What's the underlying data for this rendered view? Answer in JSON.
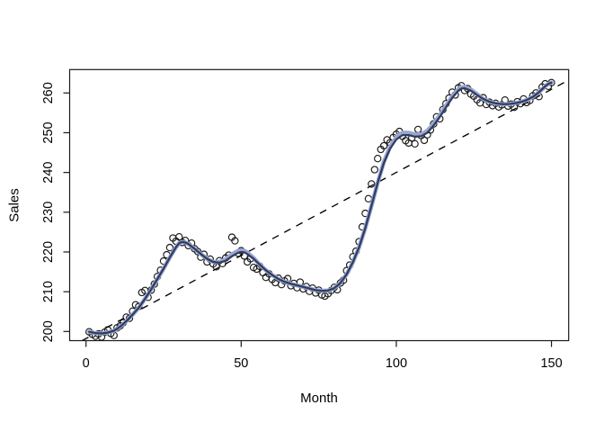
{
  "chart_data": {
    "type": "scatter",
    "title": "",
    "xlabel": "Month",
    "ylabel": "Sales",
    "x_ticks": [
      0,
      50,
      100,
      150
    ],
    "y_ticks": [
      200,
      210,
      220,
      230,
      240,
      250,
      260
    ],
    "xlim": [
      -5,
      156
    ],
    "ylim": [
      197.7,
      265.9
    ],
    "grid": "off",
    "legend": "none",
    "colors": {
      "point": "#1a1a1a",
      "smooth_dark": "#2e3b63",
      "smooth_light": "#9aa6cb",
      "trend": "#000000",
      "axis": "#1a1a1a",
      "background": "#ffffff"
    },
    "points": {
      "marker": "open-circle",
      "x": [
        1,
        2,
        3,
        4,
        5,
        6,
        7,
        8,
        9,
        10,
        11,
        12,
        13,
        14,
        15,
        16,
        17,
        18,
        19,
        20,
        21,
        22,
        23,
        24,
        25,
        26,
        27,
        28,
        29,
        30,
        31,
        32,
        33,
        34,
        35,
        36,
        37,
        38,
        39,
        40,
        41,
        42,
        43,
        44,
        45,
        46,
        47,
        48,
        49,
        50,
        51,
        52,
        53,
        54,
        55,
        56,
        57,
        58,
        59,
        60,
        61,
        62,
        63,
        64,
        65,
        66,
        67,
        68,
        69,
        70,
        71,
        72,
        73,
        74,
        75,
        76,
        77,
        78,
        79,
        80,
        81,
        82,
        83,
        84,
        85,
        86,
        87,
        88,
        89,
        90,
        91,
        92,
        93,
        94,
        95,
        96,
        97,
        98,
        99,
        100,
        101,
        102,
        103,
        104,
        105,
        106,
        107,
        108,
        109,
        110,
        111,
        112,
        113,
        114,
        115,
        116,
        117,
        118,
        119,
        120,
        121,
        122,
        123,
        124,
        125,
        126,
        127,
        128,
        129,
        130,
        131,
        132,
        133,
        134,
        135,
        136,
        137,
        138,
        139,
        140,
        141,
        142,
        143,
        144,
        145,
        146,
        147,
        148,
        149,
        150
      ],
      "y": [
        199.9,
        199.3,
        198.8,
        199.4,
        198.6,
        199.8,
        200.4,
        199.5,
        199.0,
        200.9,
        201.4,
        202.2,
        203.6,
        203.3,
        205.1,
        206.7,
        206.3,
        209.8,
        210.3,
        208.6,
        210.4,
        211.9,
        213.8,
        215.4,
        217.7,
        219.3,
        221.1,
        223.5,
        222.7,
        223.8,
        222.4,
        222.9,
        221.6,
        222.2,
        220.8,
        220.1,
        218.7,
        219.4,
        217.5,
        218.2,
        217.0,
        216.3,
        217.8,
        217.1,
        218.5,
        219.2,
        223.7,
        222.8,
        219.7,
        220.3,
        219.0,
        217.5,
        218.3,
        216.1,
        215.7,
        216.4,
        214.8,
        213.6,
        214.5,
        213.1,
        212.3,
        213.4,
        211.8,
        212.7,
        213.3,
        211.5,
        212.1,
        211.0,
        212.4,
        210.7,
        211.3,
        210.1,
        210.9,
        209.7,
        210.4,
        209.2,
        208.9,
        209.5,
        210.3,
        211.1,
        210.5,
        212.2,
        212.9,
        215.3,
        216.7,
        218.8,
        220.2,
        222.6,
        226.3,
        229.7,
        233.4,
        237.1,
        240.7,
        243.5,
        245.8,
        246.7,
        248.2,
        247.5,
        248.8,
        249.6,
        250.3,
        249.1,
        248.0,
        247.4,
        248.7,
        247.2,
        250.8,
        249.3,
        248.1,
        249.5,
        250.7,
        252.2,
        254.0,
        253.5,
        255.8,
        257.3,
        258.7,
        260.2,
        259.5,
        261.3,
        261.8,
        260.6,
        261.1,
        259.7,
        259.2,
        258.3,
        257.5,
        258.8,
        257.1,
        257.7,
        256.8,
        257.4,
        256.5,
        257.0,
        258.2,
        256.7,
        257.2,
        256.4,
        257.8,
        257.3,
        258.5,
        257.6,
        258.1,
        259.3,
        260.0,
        259.1,
        261.5,
        262.3,
        261.7,
        262.6
      ]
    },
    "smooth_light": {
      "x": [
        1,
        3,
        5,
        7,
        9,
        11,
        13,
        15,
        17,
        19,
        21,
        23,
        25,
        27,
        29,
        30,
        31,
        32,
        33,
        35,
        37,
        39,
        41,
        43,
        45,
        47,
        49,
        50,
        51,
        52,
        54,
        56,
        58,
        60,
        62,
        64,
        66,
        68,
        70,
        72,
        74,
        76,
        78,
        80,
        82,
        84,
        86,
        88,
        90,
        92,
        94,
        96,
        98,
        100,
        102,
        104,
        106,
        108,
        110,
        112,
        114,
        116,
        118,
        120,
        121,
        122,
        124,
        126,
        128,
        130,
        132,
        134,
        136,
        138,
        140,
        142,
        144,
        146,
        148,
        149,
        150
      ],
      "y": [
        199.9,
        199.6,
        199.5,
        199.7,
        200.2,
        201.2,
        202.6,
        204.2,
        206.0,
        208.2,
        210.6,
        213.2,
        215.8,
        218.6,
        221.2,
        222.2,
        222.5,
        222.4,
        222.0,
        220.8,
        219.5,
        218.3,
        217.5,
        217.5,
        218.15,
        219.4,
        220.3,
        220.45,
        220.3,
        219.85,
        218.5,
        216.8,
        215.4,
        214.2,
        213.2,
        212.5,
        212.0,
        211.6,
        211.2,
        210.8,
        210.4,
        210.2,
        210.3,
        210.9,
        212.2,
        214.4,
        217.4,
        221.2,
        226.0,
        231.6,
        237.4,
        242.7,
        246.45,
        248.85,
        250.0,
        250.0,
        249.55,
        249.6,
        250.5,
        252.25,
        254.4,
        256.8,
        259.15,
        260.9,
        261.4,
        261.5,
        260.85,
        259.7,
        258.5,
        257.8,
        257.4,
        257.2,
        257.2,
        257.4,
        257.7,
        258.2,
        259.0,
        260.2,
        261.7,
        262.3,
        262.6
      ]
    },
    "smooth_dark": {
      "x": [
        1,
        3,
        5,
        7,
        9,
        11,
        13,
        15,
        17,
        19,
        21,
        23,
        25,
        27,
        29,
        30,
        31,
        32,
        33,
        35,
        37,
        39,
        41,
        43,
        45,
        47,
        49,
        50,
        51,
        52,
        54,
        56,
        58,
        60,
        62,
        64,
        66,
        68,
        70,
        72,
        74,
        76,
        78,
        80,
        82,
        84,
        86,
        88,
        90,
        92,
        94,
        96,
        98,
        100,
        102,
        104,
        106,
        108,
        110,
        112,
        114,
        116,
        118,
        120,
        121,
        122,
        124,
        126,
        128,
        130,
        132,
        134,
        136,
        138,
        140,
        142,
        144,
        146,
        148,
        149,
        150
      ],
      "y": [
        199.9,
        199.6,
        199.5,
        199.7,
        200.2,
        201.2,
        202.6,
        204.2,
        206.0,
        208.2,
        210.6,
        213.2,
        215.8,
        218.6,
        221.2,
        222.2,
        222.5,
        222.4,
        222.0,
        220.8,
        219.5,
        218.3,
        217.5,
        217.3,
        217.8,
        218.9,
        219.8,
        220.0,
        219.9,
        219.5,
        218.3,
        216.8,
        215.4,
        214.2,
        213.2,
        212.5,
        212.0,
        211.6,
        211.2,
        210.8,
        210.4,
        210.2,
        210.3,
        210.9,
        212.2,
        214.4,
        217.4,
        221.2,
        226.0,
        231.6,
        237.4,
        242.4,
        246.0,
        248.3,
        249.4,
        249.4,
        249.0,
        249.1,
        250.0,
        251.8,
        254.0,
        256.4,
        258.8,
        260.6,
        261.1,
        261.2,
        260.6,
        259.5,
        258.5,
        257.8,
        257.4,
        257.2,
        257.2,
        257.4,
        257.7,
        258.2,
        259.0,
        260.2,
        261.7,
        262.3,
        262.6
      ]
    },
    "trend": {
      "style": "dashed",
      "x": [
        0,
        150
      ],
      "y": [
        198.26,
        260.93
      ]
    }
  }
}
